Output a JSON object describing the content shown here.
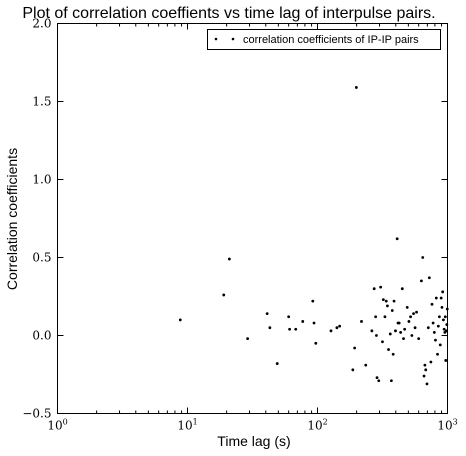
{
  "chart_data": {
    "type": "scatter",
    "title": "Plot of correlation coeffients vs time lag of interpulse pairs.",
    "xlabel": "Time lag (s)",
    "ylabel": "Correlation coefficients",
    "xscale": "log",
    "xlim": [
      1,
      1000
    ],
    "ylim": [
      -0.5,
      2.0
    ],
    "xticks": [
      {
        "value": 1,
        "base": "10",
        "exp": "0"
      },
      {
        "value": 10,
        "base": "10",
        "exp": "1"
      },
      {
        "value": 100,
        "base": "10",
        "exp": "2"
      },
      {
        "value": 1000,
        "base": "10",
        "exp": "3"
      }
    ],
    "yticks": [
      {
        "value": -0.5,
        "label": "−0.5"
      },
      {
        "value": 0.0,
        "label": "0.0"
      },
      {
        "value": 0.5,
        "label": "0.5"
      },
      {
        "value": 1.0,
        "label": "1.0"
      },
      {
        "value": 1.5,
        "label": "1.5"
      },
      {
        "value": 2.0,
        "label": "2.0"
      }
    ],
    "grid": false,
    "legend": {
      "position": "top-right",
      "entries": [
        "correlation coefficients of IP-IP pairs"
      ]
    },
    "marker_color": "#000000",
    "series": [
      {
        "name": "correlation coefficients of IP-IP pairs",
        "points": [
          [
            8.8,
            0.1
          ],
          [
            19,
            0.26
          ],
          [
            21,
            0.49
          ],
          [
            29,
            -0.02
          ],
          [
            41,
            0.14
          ],
          [
            43,
            0.05
          ],
          [
            49,
            -0.18
          ],
          [
            60,
            0.12
          ],
          [
            61,
            0.04
          ],
          [
            68,
            0.04
          ],
          [
            77,
            0.09
          ],
          [
            92,
            0.22
          ],
          [
            94,
            0.08
          ],
          [
            97,
            -0.05
          ],
          [
            127,
            0.03
          ],
          [
            141,
            0.05
          ],
          [
            148,
            0.06
          ],
          [
            187,
            -0.22
          ],
          [
            193,
            -0.08
          ],
          [
            199,
            1.59
          ],
          [
            218,
            0.09
          ],
          [
            235,
            -0.19
          ],
          [
            262,
            0.03
          ],
          [
            273,
            0.3
          ],
          [
            280,
            0.12
          ],
          [
            284,
            0.0
          ],
          [
            287,
            -0.27
          ],
          [
            296,
            -0.29
          ],
          [
            306,
            0.31
          ],
          [
            316,
            -0.04
          ],
          [
            321,
            0.23
          ],
          [
            330,
            0.12
          ],
          [
            338,
            0.22
          ],
          [
            345,
            0.19
          ],
          [
            352,
            -0.09
          ],
          [
            363,
            0.01
          ],
          [
            370,
            -0.29
          ],
          [
            376,
            0.16
          ],
          [
            382,
            -0.12
          ],
          [
            388,
            0.22
          ],
          [
            398,
            0.03
          ],
          [
            410,
            0.62
          ],
          [
            416,
            0.08
          ],
          [
            425,
            0.08
          ],
          [
            436,
            0.02
          ],
          [
            449,
            0.3
          ],
          [
            459,
            -0.02
          ],
          [
            468,
            0.04
          ],
          [
            490,
            0.18
          ],
          [
            505,
            0.09
          ],
          [
            520,
            0.12
          ],
          [
            532,
            0.0
          ],
          [
            548,
            0.14
          ],
          [
            563,
            0.05
          ],
          [
            578,
            0.15
          ],
          [
            600,
            -0.02
          ],
          [
            630,
            0.35
          ],
          [
            645,
            0.5
          ],
          [
            660,
            -0.26
          ],
          [
            670,
            -0.19
          ],
          [
            680,
            -0.22
          ],
          [
            695,
            -0.31
          ],
          [
            712,
            0.05
          ],
          [
            725,
            0.37
          ],
          [
            745,
            -0.17
          ],
          [
            760,
            0.2
          ],
          [
            775,
            0.08
          ],
          [
            792,
            0.02
          ],
          [
            808,
            -0.03
          ],
          [
            820,
            0.24
          ],
          [
            838,
            -0.12
          ],
          [
            850,
            0.06
          ],
          [
            866,
            0.12
          ],
          [
            880,
            -0.06
          ],
          [
            894,
            0.24
          ],
          [
            907,
            0.18
          ],
          [
            918,
            0.28
          ],
          [
            930,
            0.1
          ],
          [
            942,
            0.04
          ],
          [
            954,
            0.02
          ],
          [
            962,
            0.12
          ],
          [
            970,
            -0.16
          ],
          [
            980,
            0.03
          ],
          [
            988,
            0.07
          ],
          [
            996,
            0.17
          ]
        ]
      }
    ]
  }
}
